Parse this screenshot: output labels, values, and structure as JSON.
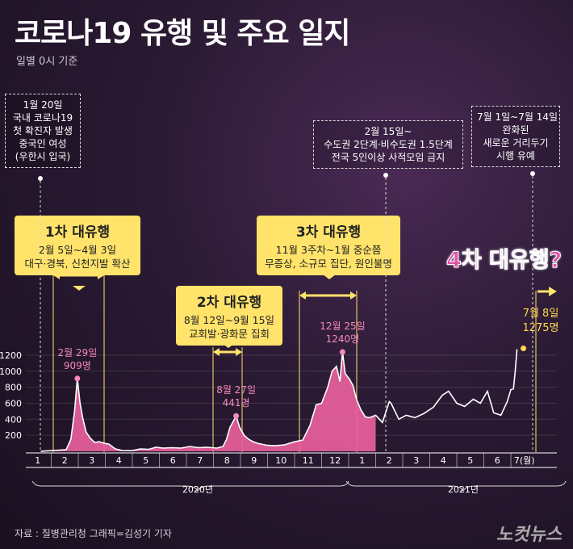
{
  "title": "코로나19 유행 및 주요 일지",
  "subtitle": "일별 0시 기준",
  "notes": {
    "first_case": [
      "1월 20일",
      "국내 코로나19",
      "첫 확진자 발생",
      "중국인 여성",
      "(우한시 입국)"
    ],
    "feb15": [
      "2월 15일~",
      "수도권 2단계·비수도권 1.5단계",
      "전국 5인이상 사적모임 금지"
    ],
    "jul1": [
      "7월 1일~7월 14일",
      "완화된",
      "새로운 거리두기",
      "시행 유예"
    ]
  },
  "waves": [
    {
      "heading": "1차 대유행",
      "lines": [
        "2월 5일~4월 3일",
        "대구·경북, 신천지발 확산"
      ]
    },
    {
      "heading": "2차 대유행",
      "lines": [
        "8월 12일~9월 15일",
        "교회발·광화문 집회"
      ]
    },
    {
      "heading": "3차 대유행",
      "lines": [
        "11월 3주차~1월 중순쯤",
        "무증상, 소규모 집단, 원인불명"
      ]
    }
  ],
  "fourth_wave": "4차 대유행?",
  "source": "자료 : 질병관리청     그래픽=김성기 기자",
  "logo": "노컷뉴스",
  "colors": {
    "area": "#e8609c",
    "line": "#ffffff",
    "highlight": "#ffd84d",
    "wave_box": "#ffe36a"
  },
  "chart_data": {
    "type": "area",
    "ylim": [
      0,
      1300
    ],
    "yticks": [
      200,
      400,
      600,
      800,
      1000,
      1200
    ],
    "xtick_labels": [
      "1",
      "2",
      "3",
      "4",
      "5",
      "6",
      "7",
      "8",
      "9",
      "10",
      "11",
      "12",
      "1",
      "2",
      "3",
      "4",
      "5",
      "6",
      "7(월)"
    ],
    "year_labels": [
      "2020년",
      "2021년"
    ],
    "annotations": [
      {
        "label": "2월 29일",
        "value_label": "909명",
        "date": "2020-02-29",
        "value": 909
      },
      {
        "label": "8월 27일",
        "value_label": "441명",
        "date": "2020-08-27",
        "value": 441
      },
      {
        "label": "12월 25일",
        "value_label": "1240명",
        "date": "2020-12-25",
        "value": 1240
      },
      {
        "label": "7월 8일",
        "value_label": "1275명",
        "date": "2021-07-08",
        "value": 1275
      }
    ],
    "series": [
      {
        "dates": [
          "2020-01-20",
          "2020-02-17",
          "2020-02-22",
          "2020-02-26",
          "2020-02-29",
          "2020-03-03",
          "2020-03-06",
          "2020-03-10",
          "2020-03-15",
          "2020-03-20",
          "2020-03-25",
          "2020-03-31",
          "2020-04-05",
          "2020-04-12",
          "2020-04-20",
          "2020-05-01",
          "2020-05-10",
          "2020-05-20",
          "2020-05-28",
          "2020-06-05",
          "2020-06-15",
          "2020-06-25",
          "2020-07-05",
          "2020-07-15",
          "2020-07-25",
          "2020-08-05",
          "2020-08-12",
          "2020-08-16",
          "2020-08-20",
          "2020-08-24",
          "2020-08-27",
          "2020-08-31",
          "2020-09-05",
          "2020-09-10",
          "2020-09-15",
          "2020-09-20",
          "2020-10-01",
          "2020-10-10",
          "2020-10-20",
          "2020-11-01",
          "2020-11-10",
          "2020-11-18",
          "2020-11-25",
          "2020-12-01",
          "2020-12-08",
          "2020-12-13",
          "2020-12-18",
          "2020-12-22",
          "2020-12-25",
          "2020-12-28",
          "2021-01-02",
          "2021-01-06",
          "2021-01-10",
          "2021-01-15",
          "2021-01-20",
          "2021-01-25",
          "2021-02-01",
          "2021-02-08",
          "2021-02-15",
          "2021-02-17",
          "2021-02-25",
          "2021-03-05",
          "2021-03-15",
          "2021-03-25",
          "2021-04-05",
          "2021-04-15",
          "2021-04-22",
          "2021-05-01",
          "2021-05-10",
          "2021-05-20",
          "2021-05-28",
          "2021-06-05",
          "2021-06-12",
          "2021-06-20",
          "2021-06-27",
          "2021-07-01",
          "2021-07-04",
          "2021-07-06",
          "2021-07-08"
        ],
        "values": [
          1,
          20,
          150,
          500,
          909,
          600,
          420,
          240,
          160,
          110,
          120,
          100,
          90,
          30,
          10,
          8,
          30,
          25,
          50,
          40,
          45,
          40,
          60,
          45,
          50,
          40,
          60,
          150,
          300,
          380,
          441,
          300,
          200,
          150,
          120,
          100,
          75,
          70,
          80,
          120,
          140,
          320,
          580,
          600,
          800,
          1000,
          1060,
          870,
          1240,
          970,
          900,
          820,
          650,
          520,
          430,
          420,
          450,
          360,
          620,
          600,
          400,
          450,
          420,
          470,
          550,
          700,
          750,
          600,
          560,
          650,
          600,
          750,
          480,
          450,
          620,
          770,
          780,
          1000,
          1275
        ]
      }
    ]
  }
}
